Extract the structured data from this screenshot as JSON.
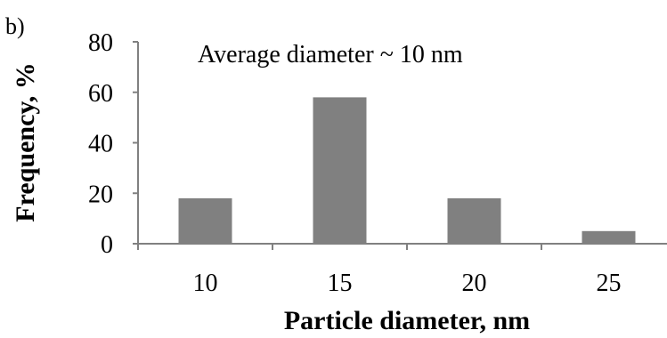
{
  "panel_label": "b)",
  "annotation": "Average diameter ~ 10 nm",
  "chart_data": {
    "type": "bar",
    "categories": [
      "10",
      "15",
      "20",
      "25"
    ],
    "values": [
      18,
      58,
      18,
      5
    ],
    "xlabel": "Particle diameter, nm",
    "ylabel": "Frequency, %",
    "ylim": [
      0,
      80
    ],
    "yticks": [
      "0",
      "20",
      "40",
      "60",
      "80"
    ],
    "grid": false,
    "legend": "none",
    "bar_color": "#808080",
    "axis_color": "#808080"
  }
}
